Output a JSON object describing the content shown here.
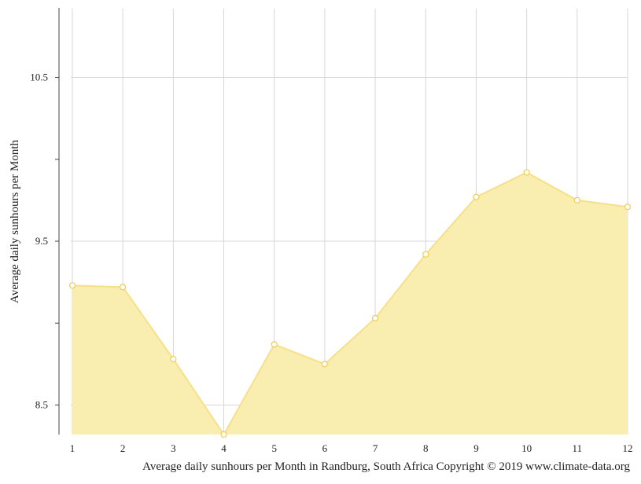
{
  "chart_data": {
    "type": "area",
    "title": "",
    "xlabel": "",
    "ylabel": "Average daily sunhours per Month",
    "caption": "Average daily sunhours per Month in Randburg, South Africa Copyright © 2019 www.climate-data.org",
    "x": [
      1,
      2,
      3,
      4,
      5,
      6,
      7,
      8,
      9,
      10,
      11,
      12
    ],
    "x_tick_labels": [
      "1",
      "2",
      "3",
      "4",
      "5",
      "6",
      "7",
      "8",
      "9",
      "10",
      "11",
      "12"
    ],
    "series": [
      {
        "values": [
          9.23,
          9.22,
          8.78,
          8.32,
          8.87,
          8.75,
          9.03,
          9.42,
          9.77,
          9.92,
          9.75,
          9.71
        ]
      }
    ],
    "y_ticks": [
      8.5,
      9.5,
      10.5
    ],
    "y_tick_labels": [
      "8.5",
      "9.5",
      "10.5"
    ],
    "y_minor_ticks": [
      9.0,
      10.0
    ],
    "ylim": [
      8.32,
      10.92
    ],
    "xlim": [
      1,
      12
    ],
    "grid": true,
    "legend": "none",
    "colors": {
      "fill": "#f9eeb0",
      "line": "#f6e089",
      "marker_stroke": "#eecd52",
      "marker_fill": "#ffffff",
      "grid": "#d7d7d7",
      "axis": "#444444"
    }
  }
}
